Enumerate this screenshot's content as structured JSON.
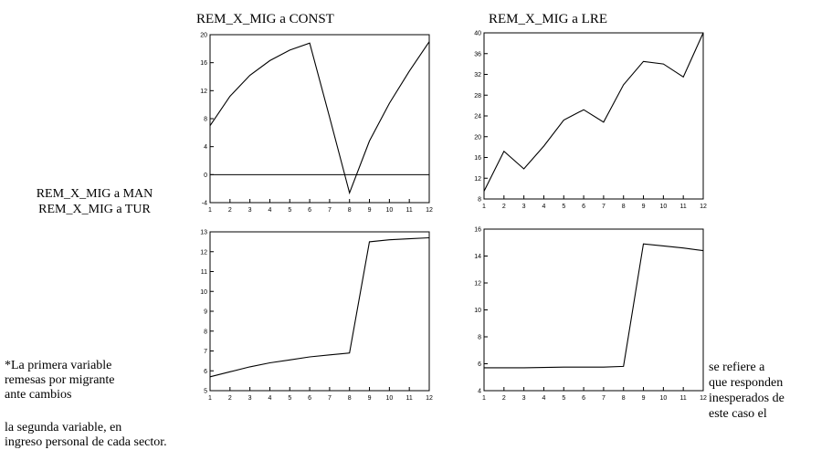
{
  "left_labels": [
    "REM_X_MIG a MAN",
    "REM_X_MIG a TUR"
  ],
  "notes_left": [
    "*La primera variable",
    "remesas por migrante",
    "ante cambios",
    "la segunda variable, en",
    "ingreso personal de cada sector."
  ],
  "notes_right": [
    "se refiere a",
    "que responden",
    "inesperados de",
    "este caso el"
  ],
  "chart_data": [
    {
      "type": "line",
      "title": "REM_X_MIG a CONST",
      "x": [
        1,
        2,
        3,
        4,
        5,
        6,
        7,
        8,
        9,
        10,
        11,
        12
      ],
      "series": [
        {
          "values": [
            7,
            11.2,
            14.2,
            16.3,
            17.8,
            18.8,
            8.2,
            -2.6,
            4.8,
            10.2,
            14.8,
            19
          ]
        }
      ],
      "ylim": [
        -4,
        20
      ],
      "yticks": [
        -4,
        0,
        4,
        8,
        12,
        16,
        20
      ],
      "xticks": [
        1,
        2,
        3,
        4,
        5,
        6,
        7,
        8,
        9,
        10,
        11,
        12
      ],
      "reference_line": 0,
      "color": "#000000"
    },
    {
      "type": "line",
      "title": "REM_X_MIG a LRE",
      "x": [
        1,
        2,
        3,
        4,
        5,
        6,
        7,
        8,
        9,
        10,
        11,
        12
      ],
      "series": [
        {
          "values": [
            9.5,
            17.2,
            13.8,
            18.2,
            23.2,
            25.2,
            22.8,
            30,
            34.5,
            34,
            31.5,
            40
          ]
        }
      ],
      "ylim": [
        8,
        40
      ],
      "yticks": [
        8,
        12,
        16,
        20,
        24,
        28,
        32,
        36,
        40
      ],
      "xticks": [
        1,
        2,
        3,
        4,
        5,
        6,
        7,
        8,
        9,
        10,
        11,
        12
      ],
      "color": "#000000"
    },
    {
      "type": "line",
      "title": "",
      "x": [
        1,
        2,
        3,
        4,
        5,
        6,
        7,
        8,
        9,
        10,
        11,
        12
      ],
      "series": [
        {
          "values": [
            5.7,
            5.95,
            6.2,
            6.4,
            6.55,
            6.7,
            6.8,
            6.9,
            12.5,
            12.6,
            12.65,
            12.7
          ]
        }
      ],
      "ylim": [
        5,
        13
      ],
      "yticks": [
        5,
        6,
        7,
        8,
        9,
        10,
        11,
        12,
        13
      ],
      "xticks": [
        1,
        2,
        3,
        4,
        5,
        6,
        7,
        8,
        9,
        10,
        11,
        12
      ],
      "color": "#000000"
    },
    {
      "type": "line",
      "title": "",
      "x": [
        1,
        2,
        3,
        4,
        5,
        6,
        7,
        8,
        9,
        10,
        11,
        12
      ],
      "series": [
        {
          "values": [
            5.7,
            5.7,
            5.7,
            5.72,
            5.75,
            5.75,
            5.75,
            5.8,
            14.9,
            14.75,
            14.6,
            14.4
          ]
        }
      ],
      "ylim": [
        4,
        16
      ],
      "yticks": [
        4,
        6,
        8,
        10,
        12,
        14,
        16
      ],
      "xticks": [
        1,
        2,
        3,
        4,
        5,
        6,
        7,
        8,
        9,
        10,
        11,
        12
      ],
      "color": "#000000"
    }
  ]
}
